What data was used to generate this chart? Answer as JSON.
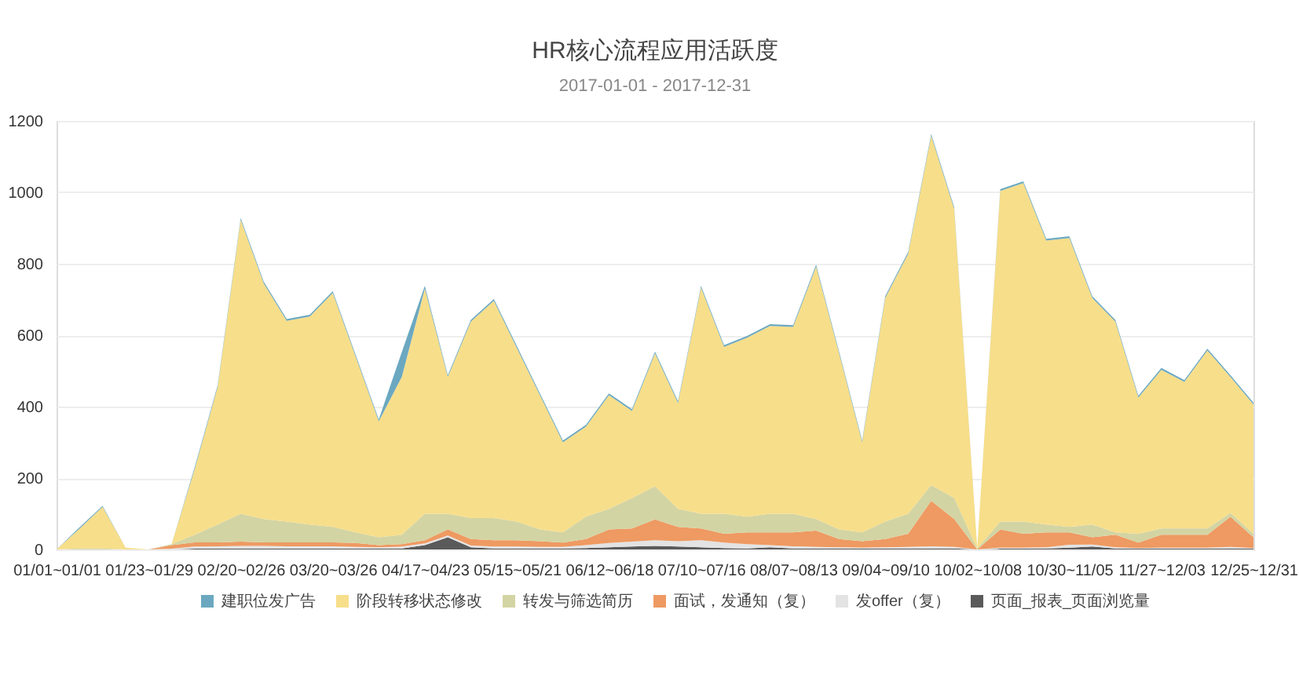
{
  "chart_data": {
    "type": "area",
    "title": "HR核心流程应用活跃度",
    "subtitle": "2017-01-01 - 2017-12-31",
    "categories": [
      "01/01~01/01",
      null,
      null,
      null,
      "01/23~01/29",
      null,
      null,
      null,
      "02/20~02/26",
      null,
      null,
      null,
      "03/20~03/26",
      null,
      null,
      null,
      "04/17~04/23",
      null,
      null,
      null,
      "05/15~05/21",
      null,
      null,
      null,
      "06/12~06/18",
      null,
      null,
      null,
      "07/10~07/16",
      null,
      null,
      null,
      "08/07~08/13",
      null,
      null,
      null,
      "09/04~09/10",
      null,
      null,
      null,
      "10/02~10/08",
      null,
      null,
      null,
      "10/30~11/05",
      null,
      null,
      null,
      "11/27~12/03",
      null,
      null,
      null,
      "12/25~12/31"
    ],
    "stacked": true,
    "series": [
      {
        "name": "页面_报表_页面浏览量",
        "color": "#5a5a5a",
        "values": [
          0,
          0,
          0,
          0,
          0,
          0,
          2,
          2,
          3,
          3,
          3,
          3,
          3,
          2,
          2,
          3,
          12,
          34,
          6,
          3,
          3,
          3,
          3,
          4,
          6,
          8,
          10,
          8,
          6,
          4,
          3,
          6,
          3,
          3,
          3,
          2,
          3,
          3,
          3,
          3,
          0,
          2,
          2,
          3,
          5,
          8,
          3,
          2,
          2,
          2,
          2,
          3,
          2
        ]
      },
      {
        "name": "发offer（复）",
        "color": "#e3e3e3",
        "values": [
          0,
          0,
          0,
          0,
          0,
          2,
          6,
          7,
          7,
          7,
          6,
          6,
          6,
          5,
          4,
          5,
          5,
          5,
          5,
          5,
          5,
          4,
          4,
          8,
          12,
          14,
          16,
          15,
          20,
          15,
          12,
          6,
          6,
          4,
          3,
          3,
          3,
          4,
          6,
          4,
          0,
          3,
          3,
          3,
          8,
          6,
          3,
          2,
          3,
          3,
          3,
          4,
          2
        ]
      },
      {
        "name": "面试，发通知（复）",
        "color": "#ee9a62",
        "values": [
          0,
          0,
          0,
          0,
          0,
          10,
          12,
          11,
          12,
          10,
          11,
          11,
          11,
          11,
          6,
          7,
          9,
          17,
          18,
          18,
          18,
          16,
          12,
          17,
          38,
          37,
          58,
          40,
          33,
          25,
          33,
          36,
          39,
          46,
          23,
          18,
          23,
          37,
          127,
          78,
          0,
          51,
          39,
          42,
          35,
          20,
          35,
          15,
          36,
          36,
          36,
          85,
          30
        ]
      },
      {
        "name": "转发与筛选简历",
        "color": "#d3d4a3",
        "values": [
          0,
          3,
          3,
          0,
          0,
          3,
          21,
          50,
          78,
          65,
          58,
          50,
          43,
          30,
          22,
          26,
          74,
          44,
          59,
          62,
          52,
          33,
          29,
          63,
          58,
          85,
          93,
          51,
          41,
          56,
          44,
          52,
          52,
          32,
          27,
          25,
          49,
          56,
          44,
          59,
          3,
          22,
          34,
          22,
          15,
          36,
          7,
          25,
          18,
          18,
          18,
          10,
          10
        ]
      },
      {
        "name": "阶段转移状态修改",
        "color": "#f7de8a",
        "values": [
          0,
          55,
          116,
          5,
          0,
          0,
          184,
          385,
          823,
          660,
          562,
          582,
          655,
          491,
          325,
          442,
          630,
          383,
          550,
          608,
          486,
          376,
          252,
          252,
          318,
          244,
          372,
          296,
          633,
          467,
          501,
          526,
          523,
          707,
          493,
          252,
          626,
          728,
          978,
          809,
          2,
          926,
          948,
          795,
          809,
          634,
          590,
          381,
          444,
          410,
          498,
          381,
          362
        ]
      },
      {
        "name": "建职位发广告",
        "color": "#6ba8c0",
        "values": [
          0,
          4,
          3,
          0,
          0,
          0,
          5,
          5,
          5,
          5,
          5,
          5,
          5,
          5,
          5,
          70,
          8,
          5,
          5,
          5,
          5,
          5,
          5,
          5,
          5,
          5,
          5,
          5,
          5,
          5,
          5,
          5,
          5,
          5,
          5,
          5,
          5,
          5,
          5,
          5,
          0,
          5,
          5,
          5,
          5,
          5,
          5,
          5,
          5,
          5,
          5,
          5,
          5
        ]
      }
    ],
    "ylim": [
      0,
      1200
    ],
    "yticks": [
      0,
      200,
      400,
      600,
      800,
      1000,
      1200
    ],
    "grid": "y",
    "legend": "bottom"
  }
}
